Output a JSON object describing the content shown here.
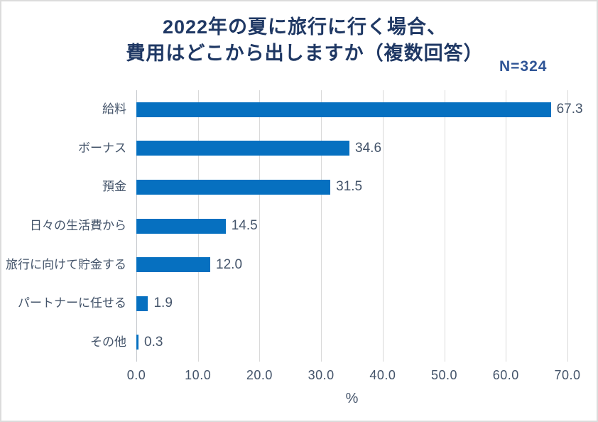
{
  "title": {
    "line1": "2022年の夏に旅行に行く場合、",
    "line2": "費用はどこから出しますか（複数回答）"
  },
  "sample_label": "N=324",
  "chart_data": {
    "type": "bar",
    "orientation": "horizontal",
    "title": "2022年の夏に旅行に行く場合、費用はどこから出しますか（複数回答）",
    "sample_size": "N=324",
    "categories": [
      "給料",
      "ボーナス",
      "預金",
      "日々の生活費から",
      "旅行に向けて貯金する",
      "パートナーに任せる",
      "その他"
    ],
    "values": [
      67.3,
      34.6,
      31.5,
      14.5,
      12.0,
      1.9,
      0.3
    ],
    "value_labels": [
      "67.3",
      "34.6",
      "31.5",
      "14.5",
      "12.0",
      "1.9",
      "0.3"
    ],
    "xlabel": "%",
    "xlim": [
      0,
      70
    ],
    "xticks": [
      0,
      10,
      20,
      30,
      40,
      50,
      60,
      70
    ],
    "xtick_labels": [
      "0.0",
      "10.0",
      "20.0",
      "30.0",
      "40.0",
      "50.0",
      "60.0",
      "70.0"
    ],
    "grid": "vertical-only",
    "legend": false,
    "colors": {
      "bar": "#0670c0",
      "title": "#1f3864",
      "n_label": "#2e5496",
      "text": "#44546a",
      "gridline": "#d9d9d9",
      "axis_line": "#c3c6cb",
      "frame_border": "#dcdcdc"
    }
  }
}
